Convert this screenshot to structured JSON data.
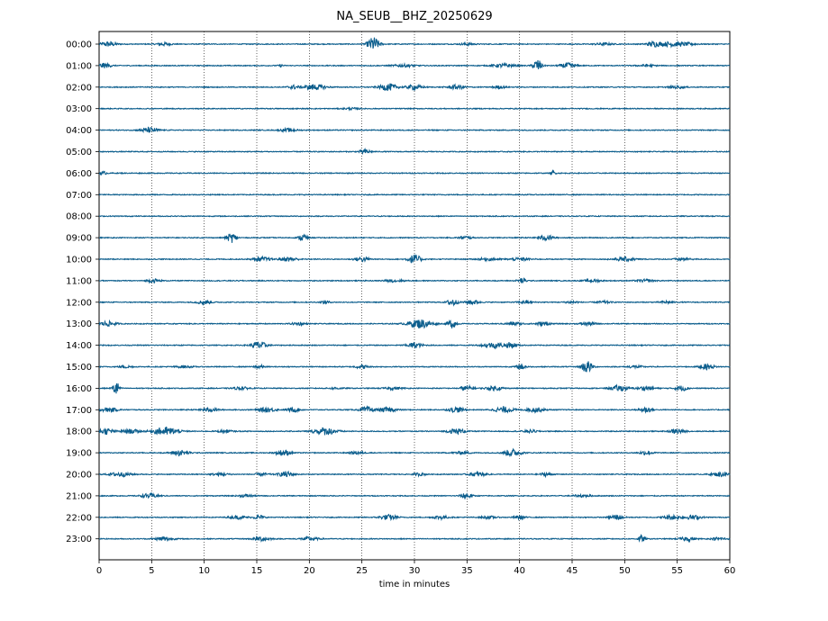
{
  "chart_data": {
    "type": "line",
    "title": "NA_SEUB__BHZ_20250629",
    "xlabel": "time in minutes",
    "ylabel": "",
    "xlim": [
      0,
      60
    ],
    "x_ticks": [
      "0",
      "5",
      "10",
      "15",
      "20",
      "25",
      "30",
      "35",
      "40",
      "45",
      "50",
      "55",
      "60"
    ],
    "y_tick_labels": [
      "00:00",
      "01:00",
      "02:00",
      "03:00",
      "04:00",
      "05:00",
      "06:00",
      "07:00",
      "08:00",
      "09:00",
      "10:00",
      "11:00",
      "12:00",
      "13:00",
      "14:00",
      "15:00",
      "16:00",
      "17:00",
      "18:00",
      "19:00",
      "20:00",
      "21:00",
      "22:00",
      "23:00"
    ],
    "grid": "vertical dotted",
    "line_color": "#0c5e8d",
    "series": [
      {
        "label": "00:00",
        "bursts": [
          [
            0.9,
            2.0,
            1.4
          ],
          [
            6.2,
            1.2,
            1.3
          ],
          [
            26.1,
            5.5,
            1.1
          ],
          [
            35.0,
            0.8,
            1.4
          ],
          [
            48.0,
            0.9,
            1.6
          ],
          [
            52.7,
            2.0,
            1.2
          ],
          [
            54.4,
            1.8,
            2.2
          ],
          [
            56.0,
            0.9,
            1.6
          ]
        ]
      },
      {
        "label": "01:00",
        "bursts": [
          [
            0.5,
            1.8,
            1.2
          ],
          [
            17.3,
            0.8,
            0.5
          ],
          [
            29.0,
            1.0,
            2.0
          ],
          [
            38.5,
            1.4,
            2.0
          ],
          [
            41.7,
            5.0,
            0.8
          ],
          [
            44.6,
            2.2,
            1.4
          ],
          [
            52.0,
            0.8,
            1.6
          ]
        ]
      },
      {
        "label": "02:00",
        "bursts": [
          [
            18.5,
            1.5,
            1.0
          ],
          [
            20.5,
            2.2,
            2.0
          ],
          [
            27.5,
            2.8,
            1.6
          ],
          [
            30.0,
            2.0,
            1.4
          ],
          [
            34.0,
            1.6,
            1.6
          ],
          [
            38.0,
            1.0,
            1.2
          ],
          [
            55.0,
            0.8,
            1.6
          ]
        ]
      },
      {
        "label": "03:00",
        "bursts": [
          [
            24.0,
            0.6,
            1.5
          ]
        ]
      },
      {
        "label": "04:00",
        "bursts": [
          [
            4.8,
            2.0,
            1.6
          ],
          [
            18.0,
            1.2,
            1.6
          ]
        ]
      },
      {
        "label": "05:00",
        "bursts": [
          [
            25.3,
            1.8,
            1.0
          ]
        ]
      },
      {
        "label": "06:00",
        "bursts": [
          [
            0.4,
            1.2,
            0.6
          ],
          [
            43.2,
            2.0,
            0.4
          ]
        ]
      },
      {
        "label": "07:00",
        "bursts": []
      },
      {
        "label": "08:00",
        "bursts": []
      },
      {
        "label": "09:00",
        "bursts": [
          [
            12.6,
            3.8,
            0.9
          ],
          [
            19.4,
            3.5,
            0.7
          ],
          [
            34.8,
            1.2,
            1.2
          ],
          [
            42.5,
            2.0,
            1.4
          ]
        ]
      },
      {
        "label": "10:00",
        "bursts": [
          [
            15.5,
            1.6,
            1.6
          ],
          [
            18.0,
            1.6,
            1.6
          ],
          [
            25.0,
            1.8,
            1.4
          ],
          [
            30.0,
            3.5,
            1.2
          ],
          [
            37.0,
            1.0,
            2.0
          ],
          [
            40.0,
            1.0,
            2.0
          ],
          [
            50.0,
            1.5,
            2.0
          ],
          [
            55.5,
            1.0,
            1.6
          ]
        ]
      },
      {
        "label": "11:00",
        "bursts": [
          [
            5.2,
            1.4,
            1.2
          ],
          [
            28.0,
            1.0,
            1.8
          ],
          [
            40.2,
            2.2,
            0.8
          ],
          [
            47.0,
            1.0,
            1.6
          ],
          [
            52.0,
            1.0,
            1.6
          ]
        ]
      },
      {
        "label": "12:00",
        "bursts": [
          [
            10.0,
            1.5,
            1.4
          ],
          [
            21.5,
            1.2,
            0.8
          ],
          [
            33.6,
            3.0,
            0.9
          ],
          [
            35.5,
            1.5,
            1.3
          ],
          [
            40.5,
            1.0,
            1.3
          ],
          [
            45.0,
            1.0,
            1.2
          ],
          [
            48.0,
            1.0,
            1.2
          ],
          [
            54.0,
            1.0,
            1.2
          ]
        ]
      },
      {
        "label": "13:00",
        "bursts": [
          [
            0.8,
            1.8,
            1.6
          ],
          [
            19.0,
            1.0,
            1.4
          ],
          [
            30.5,
            3.5,
            2.2
          ],
          [
            33.6,
            3.4,
            0.8
          ],
          [
            39.5,
            1.2,
            1.6
          ],
          [
            42.2,
            1.5,
            1.4
          ],
          [
            46.5,
            1.3,
            1.4
          ]
        ]
      },
      {
        "label": "14:00",
        "bursts": [
          [
            15.2,
            3.0,
            1.4
          ],
          [
            30.0,
            2.0,
            1.4
          ],
          [
            37.5,
            2.0,
            2.0
          ],
          [
            39.2,
            2.2,
            1.2
          ]
        ]
      },
      {
        "label": "15:00",
        "bursts": [
          [
            2.5,
            1.0,
            1.2
          ],
          [
            8.0,
            0.8,
            1.6
          ],
          [
            15.2,
            1.5,
            0.8
          ],
          [
            25.0,
            1.4,
            1.2
          ],
          [
            40.2,
            2.2,
            0.9
          ],
          [
            46.4,
            5.0,
            1.0
          ],
          [
            51.0,
            1.0,
            1.4
          ],
          [
            57.8,
            2.0,
            1.4
          ]
        ]
      },
      {
        "label": "16:00",
        "bursts": [
          [
            1.6,
            6.0,
            0.6
          ],
          [
            13.5,
            1.0,
            1.6
          ],
          [
            22.5,
            0.8,
            1.2
          ],
          [
            28.0,
            1.0,
            1.6
          ],
          [
            35.0,
            1.8,
            1.2
          ],
          [
            37.6,
            1.6,
            1.6
          ],
          [
            49.5,
            2.2,
            1.6
          ],
          [
            52.0,
            1.5,
            1.6
          ],
          [
            55.4,
            2.0,
            1.2
          ]
        ]
      },
      {
        "label": "17:00",
        "bursts": [
          [
            1.0,
            1.6,
            1.6
          ],
          [
            10.5,
            1.4,
            1.6
          ],
          [
            16.0,
            1.8,
            1.6
          ],
          [
            18.5,
            1.6,
            1.2
          ],
          [
            25.5,
            2.2,
            1.4
          ],
          [
            27.5,
            1.6,
            1.6
          ],
          [
            34.0,
            2.0,
            1.4
          ],
          [
            38.5,
            2.2,
            1.8
          ],
          [
            41.5,
            1.8,
            1.6
          ],
          [
            52.0,
            2.2,
            1.2
          ]
        ]
      },
      {
        "label": "18:00",
        "bursts": [
          [
            0.6,
            2.2,
            1.6
          ],
          [
            3.0,
            1.6,
            1.6
          ],
          [
            6.3,
            3.2,
            2.4
          ],
          [
            12.0,
            1.0,
            1.4
          ],
          [
            21.5,
            2.8,
            2.2
          ],
          [
            34.0,
            2.0,
            1.6
          ],
          [
            41.0,
            1.0,
            1.4
          ],
          [
            55.0,
            1.8,
            1.4
          ]
        ]
      },
      {
        "label": "19:00",
        "bursts": [
          [
            7.7,
            2.2,
            1.6
          ],
          [
            17.5,
            2.2,
            1.4
          ],
          [
            24.5,
            1.0,
            1.4
          ],
          [
            34.5,
            1.0,
            1.6
          ],
          [
            39.3,
            2.8,
            1.6
          ],
          [
            52.0,
            1.4,
            1.4
          ]
        ]
      },
      {
        "label": "20:00",
        "bursts": [
          [
            2.0,
            1.6,
            2.0
          ],
          [
            11.5,
            1.0,
            1.6
          ],
          [
            15.5,
            1.0,
            1.4
          ],
          [
            17.8,
            2.2,
            1.4
          ],
          [
            30.5,
            1.0,
            1.2
          ],
          [
            36.0,
            1.6,
            1.6
          ],
          [
            42.5,
            1.4,
            1.0
          ],
          [
            59.2,
            1.6,
            1.8
          ]
        ]
      },
      {
        "label": "21:00",
        "bursts": [
          [
            4.8,
            1.6,
            1.6
          ],
          [
            14.0,
            1.0,
            1.4
          ],
          [
            34.9,
            2.6,
            1.0
          ],
          [
            46.0,
            1.0,
            1.6
          ]
        ]
      },
      {
        "label": "22:00",
        "bursts": [
          [
            13.2,
            1.2,
            1.6
          ],
          [
            15.2,
            1.6,
            1.0
          ],
          [
            27.5,
            2.0,
            1.6
          ],
          [
            32.5,
            1.4,
            1.4
          ],
          [
            37.0,
            1.0,
            1.4
          ],
          [
            40.0,
            1.4,
            1.0
          ],
          [
            49.2,
            2.2,
            1.2
          ],
          [
            54.5,
            1.8,
            1.6
          ],
          [
            56.5,
            1.6,
            1.6
          ]
        ]
      },
      {
        "label": "23:00",
        "bursts": [
          [
            6.2,
            1.8,
            1.6
          ],
          [
            15.5,
            1.8,
            1.6
          ],
          [
            20.0,
            1.4,
            1.6
          ],
          [
            51.6,
            2.8,
            0.6
          ],
          [
            56.0,
            1.6,
            1.4
          ],
          [
            59.0,
            1.2,
            1.4
          ]
        ]
      }
    ]
  }
}
